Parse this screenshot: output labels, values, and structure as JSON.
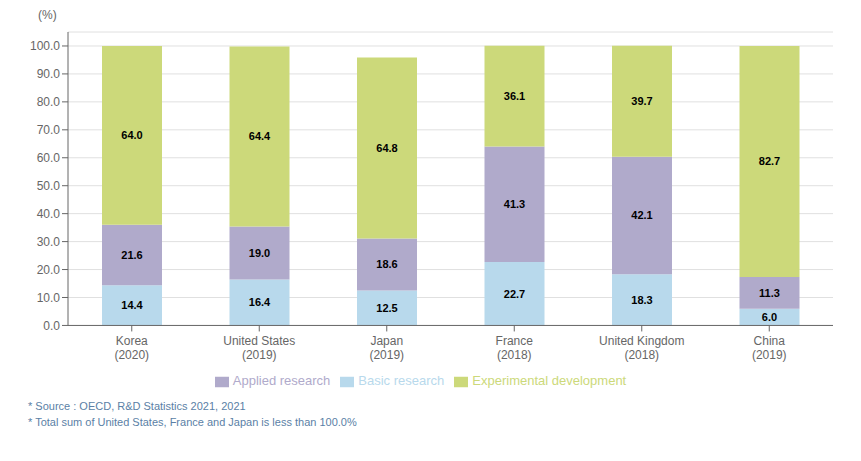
{
  "chart_data": {
    "type": "bar",
    "stacked": true,
    "data_labels": true,
    "grid": true,
    "legend": "bottom",
    "y_label": "(%)",
    "categories": [
      "Korea\n(2020)",
      "United States\n(2019)",
      "Japan\n(2019)",
      "France\n(2018)",
      "United Kingdom\n(2018)",
      "China\n(2019)"
    ],
    "series": [
      {
        "name": "Basic research",
        "color": "#b8d9ec",
        "values": [
          14.4,
          16.4,
          12.5,
          22.7,
          18.3,
          6.0
        ],
        "value_labels": [
          "14.4",
          "16.4",
          "12.5",
          "22.7",
          "18.3",
          "6.0"
        ]
      },
      {
        "name": "Applied research",
        "color": "#b0aacb",
        "values": [
          21.6,
          19.0,
          18.6,
          41.3,
          42.1,
          11.3
        ],
        "value_labels": [
          "21.6",
          "19.0",
          "18.6",
          "41.3",
          "42.1",
          "11.3"
        ]
      },
      {
        "name": "Experimental development",
        "color": "#ccd97a",
        "values": [
          64.0,
          64.4,
          64.8,
          36.1,
          39.7,
          82.7
        ],
        "value_labels": [
          "64.0",
          "64.4",
          "64.8",
          "36.1",
          "39.7",
          "82.7"
        ]
      }
    ],
    "ylim": [
      0,
      105
    ],
    "yticks": [
      {
        "value": 0,
        "label": "0.0"
      },
      {
        "value": 10,
        "label": "10.0"
      },
      {
        "value": 20,
        "label": "20.0"
      },
      {
        "value": 30,
        "label": "30.0"
      },
      {
        "value": 40,
        "label": "40.0"
      },
      {
        "value": 50,
        "label": "50.0"
      },
      {
        "value": 60,
        "label": "60.0"
      },
      {
        "value": 70,
        "label": "70.0"
      },
      {
        "value": 80,
        "label": "80.0"
      },
      {
        "value": 90,
        "label": "90.0"
      },
      {
        "value": 100,
        "label": "100.0"
      }
    ],
    "annotations": [
      "* Source : OECD, R&D Statistics 2021, 2021",
      "* Total sum of United States, France and Japan is less than 100.0%"
    ]
  }
}
